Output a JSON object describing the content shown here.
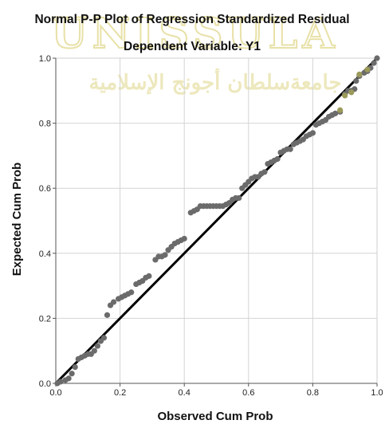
{
  "chart_data": {
    "type": "scatter",
    "title": "Normal P-P Plot of Regression Standardized Residual",
    "subtitle": "Dependent Variable: Y1",
    "xlabel": "Observed Cum Prob",
    "ylabel": "Expected Cum Prob",
    "xlim": [
      0.0,
      1.0
    ],
    "ylim": [
      0.0,
      1.0
    ],
    "xticks": [
      "0.0",
      "0.2",
      "0.4",
      "0.6",
      "0.8",
      "1.0"
    ],
    "yticks": [
      "0.0",
      "0.2",
      "0.4",
      "0.6",
      "0.8",
      "1.0"
    ],
    "grid": true,
    "reference_line": {
      "from": [
        0.0,
        0.0
      ],
      "to": [
        1.0,
        1.0
      ],
      "color": "#000000"
    },
    "marker_color": "#6b6b6b",
    "highlight_color": "#9c9a5a",
    "points": [
      [
        0.005,
        0.0
      ],
      [
        0.015,
        0.005
      ],
      [
        0.03,
        0.01
      ],
      [
        0.04,
        0.015
      ],
      [
        0.05,
        0.03
      ],
      [
        0.06,
        0.05
      ],
      [
        0.07,
        0.075
      ],
      [
        0.08,
        0.08
      ],
      [
        0.09,
        0.085
      ],
      [
        0.1,
        0.09
      ],
      [
        0.11,
        0.09
      ],
      [
        0.12,
        0.1
      ],
      [
        0.13,
        0.115
      ],
      [
        0.14,
        0.13
      ],
      [
        0.15,
        0.14
      ],
      [
        0.16,
        0.21
      ],
      [
        0.17,
        0.24
      ],
      [
        0.18,
        0.25
      ],
      [
        0.195,
        0.26
      ],
      [
        0.205,
        0.265
      ],
      [
        0.215,
        0.27
      ],
      [
        0.225,
        0.275
      ],
      [
        0.235,
        0.28
      ],
      [
        0.25,
        0.305
      ],
      [
        0.26,
        0.31
      ],
      [
        0.27,
        0.315
      ],
      [
        0.28,
        0.325
      ],
      [
        0.29,
        0.33
      ],
      [
        0.31,
        0.38
      ],
      [
        0.32,
        0.39
      ],
      [
        0.33,
        0.39
      ],
      [
        0.34,
        0.395
      ],
      [
        0.35,
        0.41
      ],
      [
        0.36,
        0.42
      ],
      [
        0.37,
        0.43
      ],
      [
        0.38,
        0.435
      ],
      [
        0.39,
        0.44
      ],
      [
        0.4,
        0.445
      ],
      [
        0.42,
        0.525
      ],
      [
        0.43,
        0.53
      ],
      [
        0.44,
        0.535
      ],
      [
        0.45,
        0.545
      ],
      [
        0.46,
        0.545
      ],
      [
        0.47,
        0.545
      ],
      [
        0.48,
        0.545
      ],
      [
        0.49,
        0.545
      ],
      [
        0.5,
        0.545
      ],
      [
        0.51,
        0.545
      ],
      [
        0.52,
        0.545
      ],
      [
        0.53,
        0.55
      ],
      [
        0.54,
        0.555
      ],
      [
        0.55,
        0.565
      ],
      [
        0.56,
        0.57
      ],
      [
        0.57,
        0.57
      ],
      [
        0.58,
        0.6
      ],
      [
        0.59,
        0.61
      ],
      [
        0.6,
        0.62
      ],
      [
        0.61,
        0.63
      ],
      [
        0.62,
        0.635
      ],
      [
        0.63,
        0.635
      ],
      [
        0.64,
        0.645
      ],
      [
        0.65,
        0.65
      ],
      [
        0.66,
        0.675
      ],
      [
        0.67,
        0.68
      ],
      [
        0.68,
        0.685
      ],
      [
        0.69,
        0.69
      ],
      [
        0.7,
        0.71
      ],
      [
        0.71,
        0.715
      ],
      [
        0.72,
        0.72
      ],
      [
        0.73,
        0.72
      ],
      [
        0.74,
        0.735
      ],
      [
        0.75,
        0.74
      ],
      [
        0.76,
        0.745
      ],
      [
        0.77,
        0.75
      ],
      [
        0.78,
        0.76
      ],
      [
        0.79,
        0.765
      ],
      [
        0.8,
        0.77
      ],
      [
        0.81,
        0.795
      ],
      [
        0.82,
        0.8
      ],
      [
        0.83,
        0.805
      ],
      [
        0.84,
        0.81
      ],
      [
        0.85,
        0.82
      ],
      [
        0.86,
        0.825
      ],
      [
        0.87,
        0.83
      ],
      [
        0.885,
        0.835
      ],
      [
        0.9,
        0.89
      ],
      [
        0.91,
        0.9
      ],
      [
        0.92,
        0.9
      ],
      [
        0.93,
        0.905
      ],
      [
        0.935,
        0.93
      ],
      [
        0.945,
        0.945
      ],
      [
        0.96,
        0.955
      ],
      [
        0.97,
        0.96
      ],
      [
        0.98,
        0.97
      ],
      [
        0.99,
        0.985
      ],
      [
        1.0,
        1.0
      ]
    ],
    "highlighted_points": [
      [
        0.885,
        0.84
      ],
      [
        0.9,
        0.885
      ],
      [
        0.92,
        0.895
      ],
      [
        0.945,
        0.95
      ],
      [
        0.97,
        0.965
      ]
    ]
  },
  "watermark": {
    "text": "UNISSULA",
    "arabic_text": "جامعةسلطان أجونج الإسلامية",
    "color": "#e8e1a8"
  }
}
